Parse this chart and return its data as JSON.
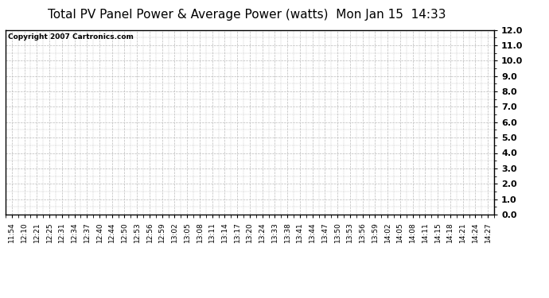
{
  "title": "Total PV Panel Power & Average Power (watts)  Mon Jan 15  14:33",
  "copyright_text": "Copyright 2007 Cartronics.com",
  "ylim": [
    0.0,
    12.0
  ],
  "yticks": [
    0.0,
    1.0,
    2.0,
    3.0,
    4.0,
    5.0,
    6.0,
    7.0,
    8.0,
    9.0,
    10.0,
    11.0,
    12.0
  ],
  "x_labels": [
    "11:54",
    "12:10",
    "12:21",
    "12:25",
    "12:31",
    "12:34",
    "12:37",
    "12:40",
    "12:44",
    "12:50",
    "12:53",
    "12:56",
    "12:59",
    "13:02",
    "13:05",
    "13:08",
    "13:11",
    "13:14",
    "13:17",
    "13:20",
    "13:24",
    "13:33",
    "13:38",
    "13:41",
    "13:44",
    "13:47",
    "13:50",
    "13:53",
    "13:56",
    "13:59",
    "14:02",
    "14:05",
    "14:08",
    "14:11",
    "14:15",
    "14:18",
    "14:21",
    "14:24",
    "14:27"
  ],
  "background_color": "#ffffff",
  "plot_bg_color": "#ffffff",
  "grid_color": "#bbbbbb",
  "border_color": "#000000",
  "title_fontsize": 11,
  "tick_fontsize": 6.5,
  "ytick_fontsize": 8,
  "copyright_fontsize": 6.5
}
